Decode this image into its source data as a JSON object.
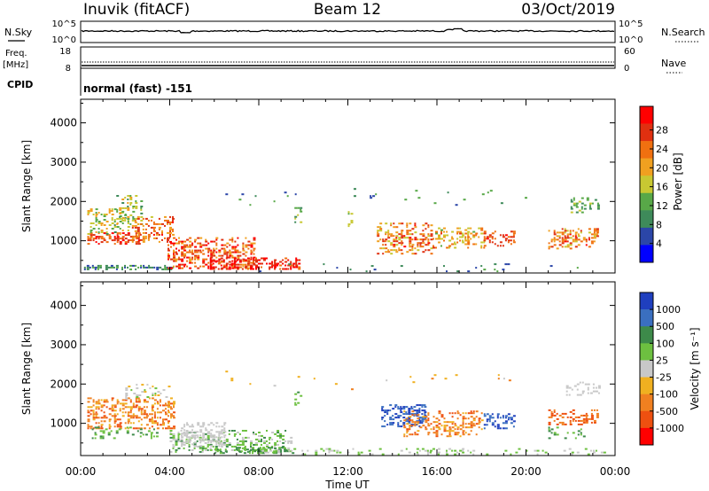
{
  "header": {
    "station": "Inuvik (fitACF)",
    "beam": "Beam 12",
    "date": "03/Oct/2019"
  },
  "params_panel": {
    "nsky_label": "N.Sky",
    "nsearch_label": "N.Search",
    "freq_label_1": "Freq.",
    "freq_label_2": "[MHz]",
    "nave_label": "Nave",
    "cpid_label": "CPID",
    "cpid_text": "normal (fast) -151",
    "noise_ticks_left": [
      "10^5",
      "10^0"
    ],
    "noise_ticks_right": [
      "10^5",
      "10^0"
    ],
    "freq_ticks": [
      "18",
      "8"
    ],
    "nave_ticks": [
      "60",
      "0"
    ]
  },
  "colors": {
    "power_scale": [
      "#0000ff",
      "#2b46a8",
      "#3e8a5a",
      "#58a848",
      "#c8c832",
      "#f0a020",
      "#f07010",
      "#e03010",
      "#ff0000"
    ],
    "velocity_scale": [
      "#1f3fbf",
      "#3a6fc0",
      "#3d8a4a",
      "#6dc040",
      "#c8c8c8",
      "#f0b020",
      "#f08020",
      "#ee5010",
      "#ff0000"
    ]
  },
  "chart_data": [
    {
      "type": "heatmap",
      "panel": "power",
      "xlabel": "",
      "ylabel": "Slant Range [km]",
      "y_ticks": [
        "4000",
        "3000",
        "2000",
        "1000"
      ],
      "y_range_km": [
        180,
        4600
      ],
      "x_range_h": [
        0,
        24
      ],
      "colorbar_label": "Power [dB]",
      "colorbar_ticks": [
        "28",
        "24",
        "20",
        "16",
        "12",
        "8",
        "4"
      ],
      "colorbar_range": [
        0,
        33
      ],
      "blobs": [
        {
          "t0": 0.15,
          "t1": 4.2,
          "r0": 250,
          "r1": 360,
          "dens": 0.8,
          "v0": 4,
          "v1": 14,
          "seed": 11
        },
        {
          "t0": 0.3,
          "t1": 2.7,
          "r0": 900,
          "r1": 1200,
          "dens": 0.7,
          "v0": 22,
          "v1": 32,
          "seed": 12
        },
        {
          "t0": 0.3,
          "t1": 2.2,
          "r0": 1150,
          "r1": 1800,
          "dens": 0.45,
          "v0": 10,
          "v1": 22,
          "seed": 13
        },
        {
          "t0": 1.6,
          "t1": 2.7,
          "r0": 1400,
          "r1": 2150,
          "dens": 0.35,
          "v0": 10,
          "v1": 20,
          "seed": 14
        },
        {
          "t0": 2.3,
          "t1": 4.2,
          "r0": 950,
          "r1": 1600,
          "dens": 0.5,
          "v0": 18,
          "v1": 30,
          "seed": 15
        },
        {
          "t0": 3.9,
          "t1": 7.8,
          "r0": 280,
          "r1": 1050,
          "dens": 0.55,
          "v0": 20,
          "v1": 32,
          "seed": 16
        },
        {
          "t0": 5.8,
          "t1": 9.8,
          "r0": 260,
          "r1": 550,
          "dens": 0.65,
          "v0": 24,
          "v1": 33,
          "seed": 17
        },
        {
          "t0": 9.6,
          "t1": 9.9,
          "r0": 1450,
          "r1": 1850,
          "dens": 0.4,
          "v0": 10,
          "v1": 18,
          "seed": 18
        },
        {
          "t0": 12.0,
          "t1": 12.2,
          "r0": 1350,
          "r1": 1750,
          "dens": 0.35,
          "v0": 12,
          "v1": 20,
          "seed": 19
        },
        {
          "t0": 13.3,
          "t1": 15.8,
          "r0": 650,
          "r1": 1450,
          "dens": 0.5,
          "v0": 16,
          "v1": 30,
          "seed": 20
        },
        {
          "t0": 15.8,
          "t1": 18.2,
          "r0": 800,
          "r1": 1300,
          "dens": 0.4,
          "v0": 14,
          "v1": 26,
          "seed": 21
        },
        {
          "t0": 18.1,
          "t1": 19.5,
          "r0": 850,
          "r1": 1250,
          "dens": 0.5,
          "v0": 22,
          "v1": 30,
          "seed": 22
        },
        {
          "t0": 21.0,
          "t1": 23.2,
          "r0": 780,
          "r1": 1300,
          "dens": 0.5,
          "v0": 16,
          "v1": 30,
          "seed": 23
        },
        {
          "t0": 22.0,
          "t1": 23.3,
          "r0": 1700,
          "r1": 2100,
          "dens": 0.35,
          "v0": 8,
          "v1": 16,
          "seed": 24
        },
        {
          "t0": 8.0,
          "t1": 23.6,
          "r0": 200,
          "r1": 420,
          "dens": 0.06,
          "v0": 4,
          "v1": 12,
          "seed": 25
        },
        {
          "t0": 6.5,
          "t1": 21.0,
          "r0": 1800,
          "r1": 2300,
          "dens": 0.02,
          "v0": 4,
          "v1": 14,
          "seed": 26
        }
      ]
    },
    {
      "type": "heatmap",
      "panel": "velocity",
      "xlabel": "Time UT",
      "ylabel": "Slant Range [km]",
      "x_ticks": [
        "00:00",
        "04:00",
        "08:00",
        "12:00",
        "16:00",
        "20:00",
        "00:00"
      ],
      "y_ticks": [
        "4000",
        "3000",
        "2000",
        "1000"
      ],
      "y_range_km": [
        180,
        4600
      ],
      "x_range_h": [
        0,
        24
      ],
      "colorbar_label": "Velocity [m s⁻¹]",
      "colorbar_ticks": [
        "1000",
        "500",
        "100",
        "25",
        "-25",
        "-100",
        "-500",
        "-1000"
      ],
      "blobs": [
        {
          "t0": 0.3,
          "t1": 4.2,
          "r0": 850,
          "r1": 1650,
          "dens": 0.55,
          "c0": 5,
          "c1": 7,
          "seed": 31
        },
        {
          "t0": 0.5,
          "t1": 3.5,
          "r0": 600,
          "r1": 900,
          "dens": 0.3,
          "c0": 2,
          "c1": 3,
          "seed": 32
        },
        {
          "t0": 2.0,
          "t1": 4.0,
          "r0": 1600,
          "r1": 2000,
          "dens": 0.25,
          "c0": 3,
          "c1": 5,
          "seed": 33
        },
        {
          "t0": 4.0,
          "t1": 9.5,
          "r0": 250,
          "r1": 800,
          "dens": 0.45,
          "c0": 2,
          "c1": 4,
          "seed": 34
        },
        {
          "t0": 4.5,
          "t1": 6.5,
          "r0": 400,
          "r1": 1000,
          "dens": 0.5,
          "c0": 4,
          "c1": 4,
          "seed": 35
        },
        {
          "t0": 6.0,
          "t1": 9.5,
          "r0": 220,
          "r1": 360,
          "dens": 0.6,
          "c0": 2,
          "c1": 3,
          "seed": 36
        },
        {
          "t0": 9.6,
          "t1": 9.9,
          "r0": 1450,
          "r1": 1850,
          "dens": 0.35,
          "c0": 2,
          "c1": 3,
          "seed": 37
        },
        {
          "t0": 13.5,
          "t1": 15.5,
          "r0": 900,
          "r1": 1450,
          "dens": 0.55,
          "c0": 0,
          "c1": 1,
          "seed": 38
        },
        {
          "t0": 14.5,
          "t1": 18.0,
          "r0": 650,
          "r1": 1300,
          "dens": 0.45,
          "c0": 5,
          "c1": 7,
          "seed": 39
        },
        {
          "t0": 18.1,
          "t1": 19.5,
          "r0": 850,
          "r1": 1250,
          "dens": 0.5,
          "c0": 0,
          "c1": 1,
          "seed": 40
        },
        {
          "t0": 21.0,
          "t1": 23.2,
          "r0": 950,
          "r1": 1350,
          "dens": 0.45,
          "c0": 6,
          "c1": 7,
          "seed": 41
        },
        {
          "t0": 21.0,
          "t1": 22.8,
          "r0": 600,
          "r1": 900,
          "dens": 0.35,
          "c0": 2,
          "c1": 3,
          "seed": 42
        },
        {
          "t0": 21.8,
          "t1": 23.3,
          "r0": 1700,
          "r1": 2050,
          "dens": 0.35,
          "c0": 4,
          "c1": 4,
          "seed": 43
        },
        {
          "t0": 8.0,
          "t1": 23.8,
          "r0": 190,
          "r1": 360,
          "dens": 0.25,
          "c0": 3,
          "c1": 4,
          "seed": 44
        },
        {
          "t0": 6.5,
          "t1": 21.0,
          "r0": 1800,
          "r1": 2300,
          "dens": 0.02,
          "c0": 4,
          "c1": 6,
          "seed": 45
        }
      ]
    }
  ]
}
